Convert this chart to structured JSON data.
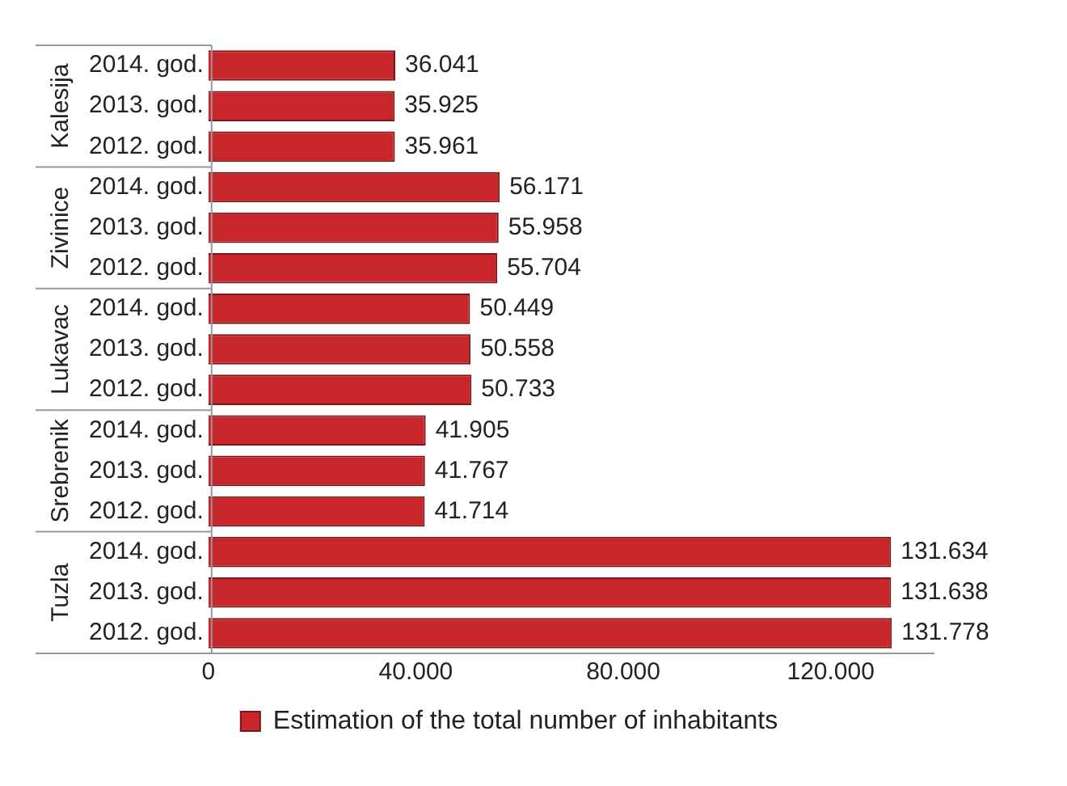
{
  "chart_data": {
    "type": "bar",
    "orientation": "horizontal",
    "categories": [
      "2014. god.",
      "2013. god.",
      "2012. god.",
      "2014. god.",
      "2013. god.",
      "2012. god.",
      "2014. god.",
      "2013. god.",
      "2012. god.",
      "2014. god.",
      "2013. god.",
      "2012. god.",
      "2014. god.",
      "2013. god.",
      "2012. god."
    ],
    "series": [
      {
        "name": "Estimation of the total number of inhabitants",
        "color": "#c8262b",
        "values": [
          36041,
          35925,
          35961,
          56171,
          55958,
          55704,
          50449,
          50558,
          50733,
          41905,
          41767,
          41714,
          131634,
          131638,
          131778
        ],
        "value_labels": [
          "36.041",
          "35.925",
          "35.961",
          "56.171",
          "55.958",
          "55.704",
          "50.449",
          "50.558",
          "50.733",
          "41.905",
          "41.767",
          "41.714",
          "131.634",
          "131.638",
          "131.778"
        ]
      }
    ],
    "xlim": [
      0,
      140000
    ],
    "xticks": [
      0,
      {
        "value": 40000,
        "label": "40.000"
      },
      {
        "value": 80000,
        "label": "80.000"
      },
      {
        "value": 120000,
        "label": "120.000"
      }
    ],
    "annotations": [
      "Kalesija",
      "Zivinice",
      "Lukavac",
      "Srebrenik",
      "Tuzla"
    ],
    "grid": false,
    "legend": "bottom"
  }
}
